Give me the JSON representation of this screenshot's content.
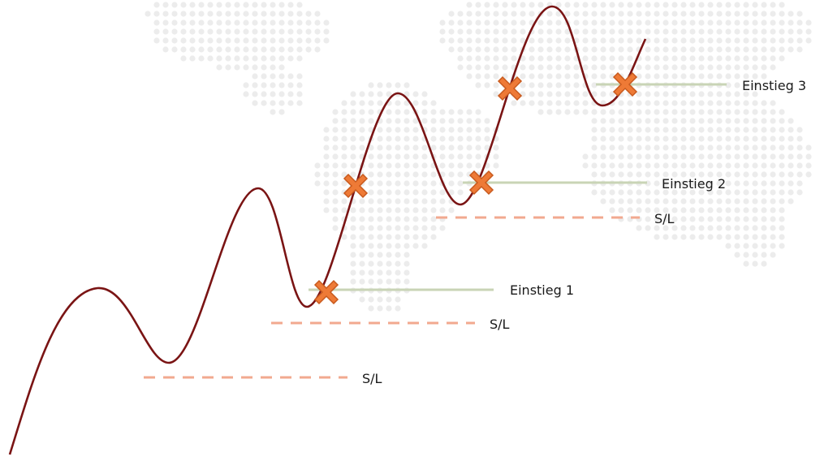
{
  "colors": {
    "price_line": "#7a1414",
    "entry_line": "#c9d4b6",
    "stop_loss": "#f2a98f",
    "marker_fill": "#ee7a36",
    "marker_stroke": "#c85a1e",
    "map_dots": "#ececec"
  },
  "entries": [
    {
      "label": "Einstieg 1"
    },
    {
      "label": "Einstieg 2"
    },
    {
      "label": "Einstieg 3"
    }
  ],
  "stop_losses": [
    {
      "label": "S/L"
    },
    {
      "label": "S/L"
    },
    {
      "label": "S/L"
    }
  ],
  "icons": {
    "entry_marker": "cross-marker-icon",
    "background": "world-map-dots"
  }
}
